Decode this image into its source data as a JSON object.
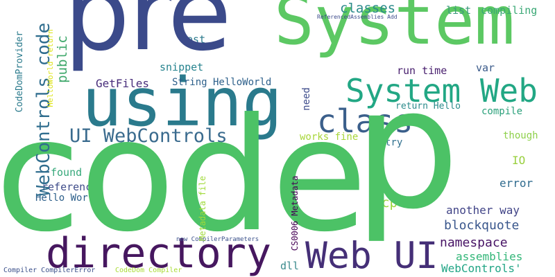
{
  "words": [
    {
      "text": "code",
      "color": "#4cc266"
    },
    {
      "text": "p",
      "color": "#4cc266"
    },
    {
      "text": "pre",
      "color": "#3b4a8a"
    },
    {
      "text": "System",
      "color": "#5cc863"
    },
    {
      "text": "using",
      "color": "#2a7a8c"
    },
    {
      "text": "directory",
      "color": "#46175f"
    },
    {
      "text": "Web UI",
      "color": "#452f77"
    },
    {
      "text": "System Web",
      "color": "#22a784"
    },
    {
      "text": "class",
      "color": "#3b5f8b"
    },
    {
      "text": "UI WebControls",
      "color": "#3a6b8e"
    },
    {
      "text": "WebControls code",
      "color": "#2f6d8e"
    },
    {
      "text": "classes",
      "color": "#2a8a8a"
    },
    {
      "text": "compiling",
      "color": "#3aa875"
    },
    {
      "text": "list",
      "color": "#3a9a7a"
    },
    {
      "text": "Test",
      "color": "#2a7a8c"
    },
    {
      "text": "public",
      "color": "#3fa86b"
    },
    {
      "text": "snippet",
      "color": "#26838e"
    },
    {
      "text": "GetFiles",
      "color": "#472c7a"
    },
    {
      "text": "String HelloWorld",
      "color": "#2c5f8a"
    },
    {
      "text": "run time",
      "color": "#481f6e"
    },
    {
      "text": "var",
      "color": "#3a5a8a"
    },
    {
      "text": "need",
      "color": "#3b4a8a"
    },
    {
      "text": "return Hello",
      "color": "#2a8a8a"
    },
    {
      "text": "compile",
      "color": "#2aa07a"
    },
    {
      "text": "though",
      "color": "#8ed04a"
    },
    {
      "text": "try",
      "color": "#30708e"
    },
    {
      "text": "works fine",
      "color": "#a8d63a"
    },
    {
      "text": "IO",
      "color": "#9ad040"
    },
    {
      "text": "error",
      "color": "#2f6b8e"
    },
    {
      "text": "found",
      "color": "#36a87a"
    },
    {
      "text": "reference",
      "color": "#3e4b89"
    },
    {
      "text": "Hello World",
      "color": "#2c5f8a"
    },
    {
      "text": "cp",
      "color": "#9bd53a"
    },
    {
      "text": "another way",
      "color": "#414487"
    },
    {
      "text": "blockquote",
      "color": "#39568c"
    },
    {
      "text": "namespace",
      "color": "#471365"
    },
    {
      "text": "assemblies",
      "color": "#32b678"
    },
    {
      "text": "WebControls'",
      "color": "#21a585"
    },
    {
      "text": "dll",
      "color": "#3a8a8c"
    },
    {
      "text": "Metadata file",
      "color": "#a0da39"
    },
    {
      "text": "CS0006 Metadata",
      "color": "#440154"
    },
    {
      "text": "new CompilerParameters",
      "color": "#3b518b"
    },
    {
      "text": "Compiler CompilerError",
      "color": "#3a4f8a"
    },
    {
      "text": "CodeDom Compiler",
      "color": "#a8db34"
    },
    {
      "text": "ReferencedAssemblies Add",
      "color": "#3b4a8a"
    },
    {
      "text": "CodeDomProvider",
      "color": "#2a7a8c"
    },
    {
      "text": "HelloWorld return",
      "color": "#dde318"
    }
  ]
}
